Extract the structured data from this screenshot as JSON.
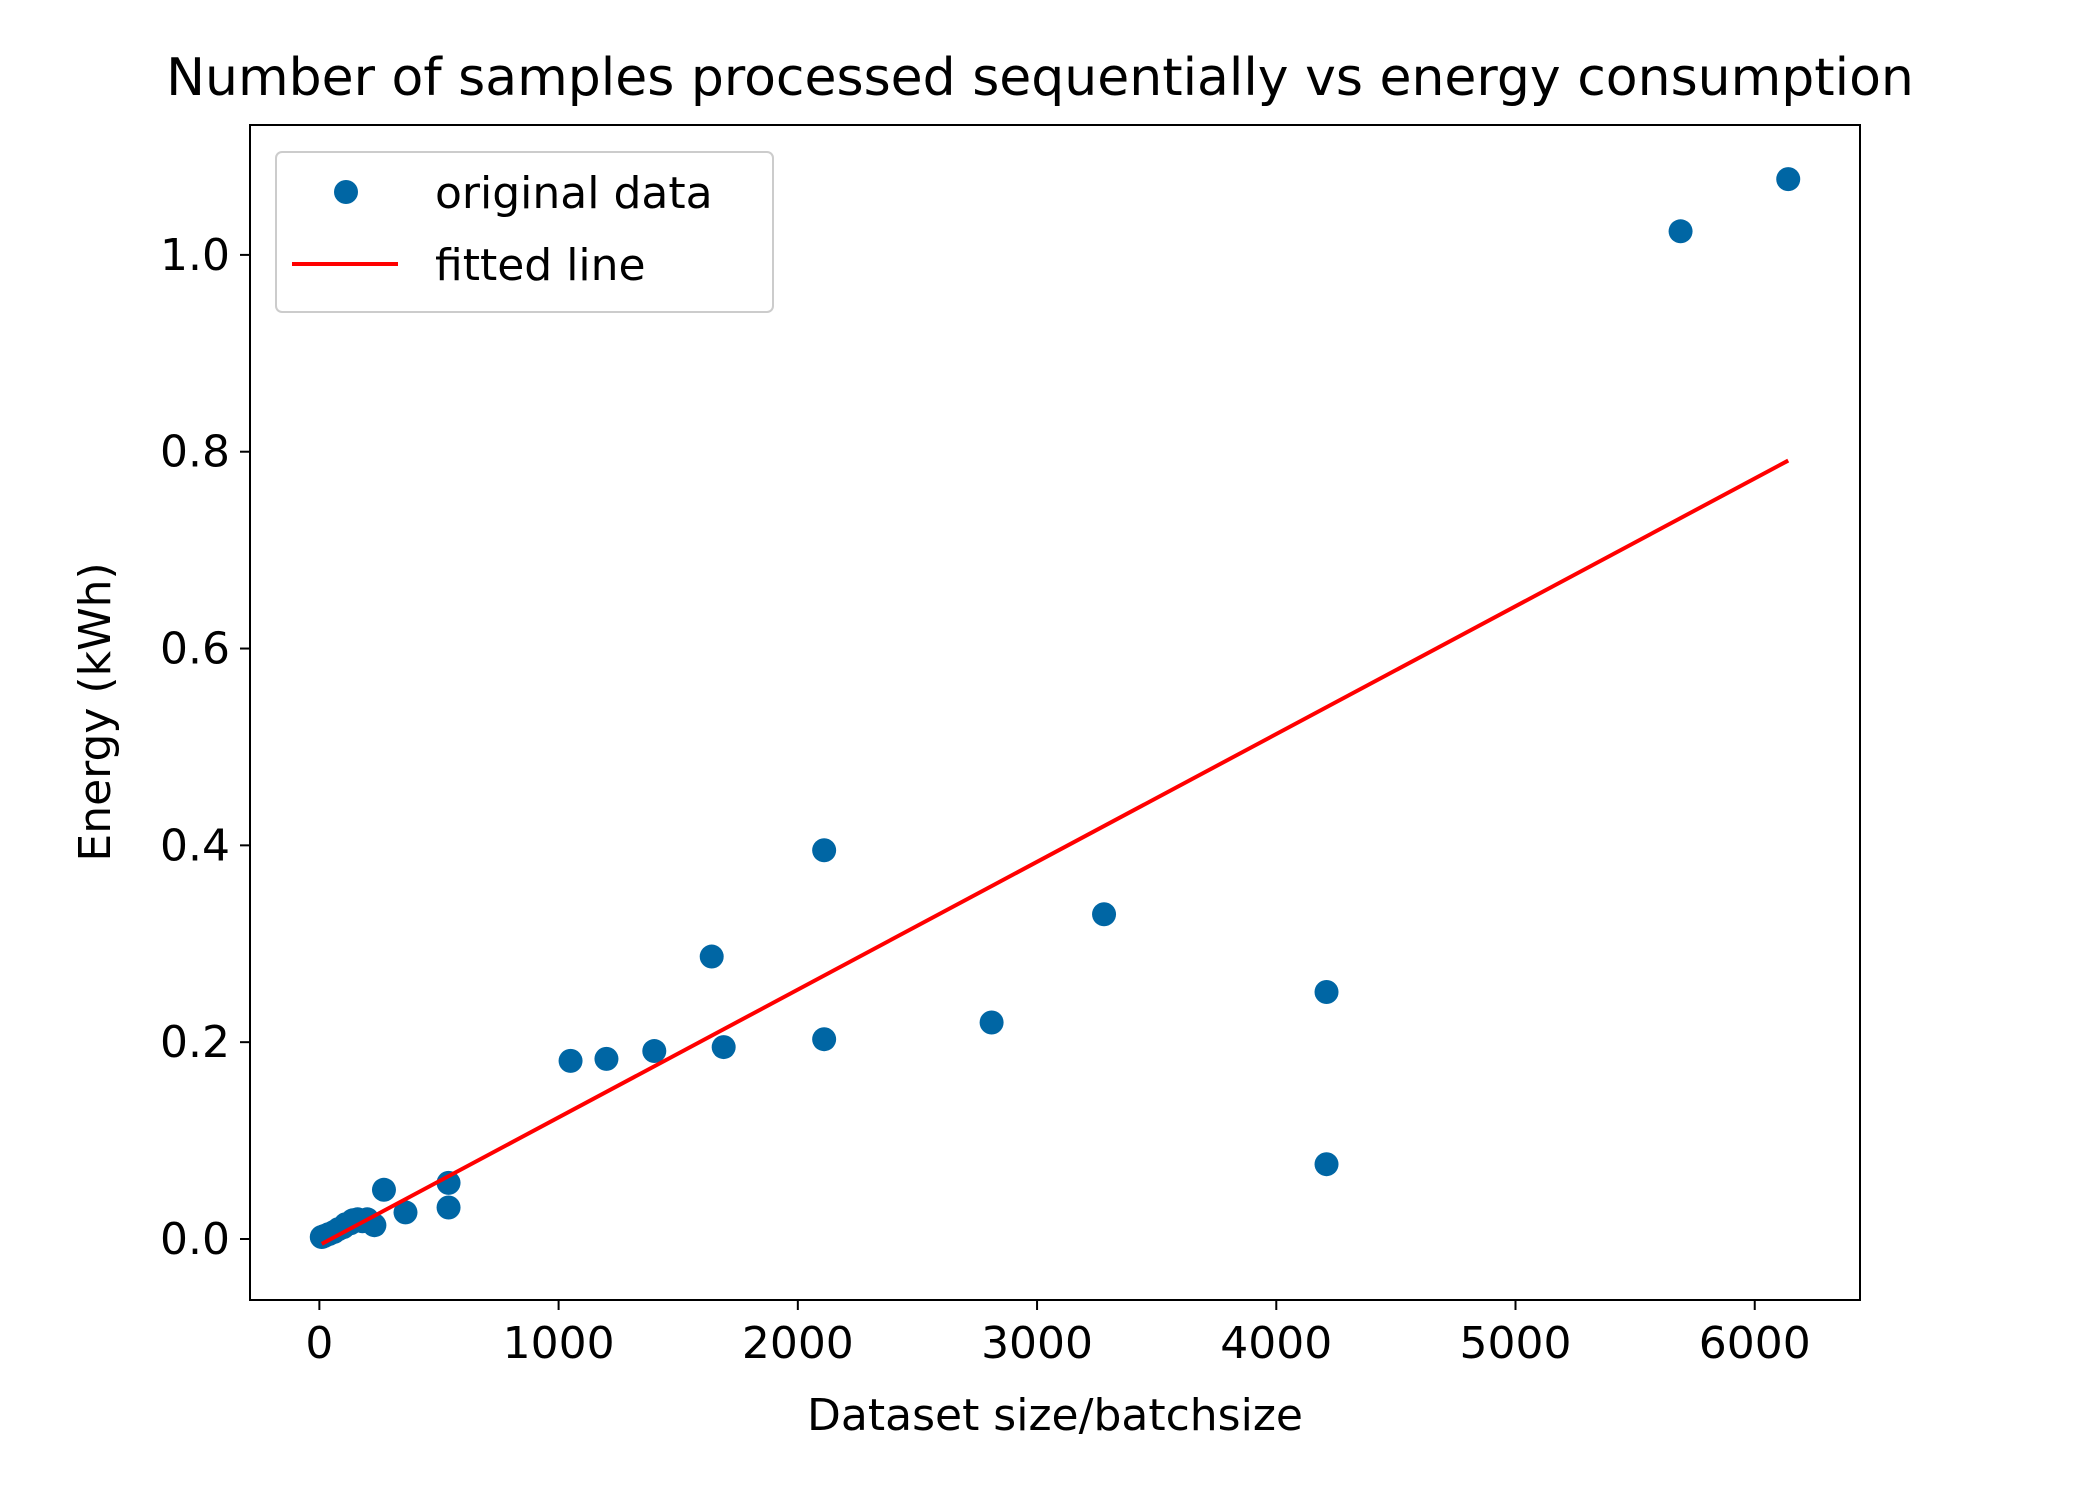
{
  "chart_data": {
    "type": "scatter",
    "title": "Number of samples processed sequentially vs energy consumption",
    "xlabel": "Dataset size/batchsize",
    "ylabel": "Energy (kWh)",
    "xlim": [
      -290,
      6440
    ],
    "ylim": [
      -0.062,
      1.132
    ],
    "x_ticks": [
      0,
      1000,
      2000,
      3000,
      4000,
      5000,
      6000
    ],
    "x_tick_labels": [
      "0",
      "1000",
      "2000",
      "3000",
      "4000",
      "5000",
      "6000"
    ],
    "y_ticks": [
      0.0,
      0.2,
      0.4,
      0.6,
      0.8,
      1.0
    ],
    "y_tick_labels": [
      "0.0",
      "0.2",
      "0.4",
      "0.6",
      "0.8",
      "1.0"
    ],
    "grid": false,
    "legend_position": "top-left",
    "legend": [
      "original data",
      "fitted line"
    ],
    "series": [
      {
        "name": "original data",
        "kind": "scatter",
        "color": "#0066a4",
        "points": [
          [
            10,
            0.002
          ],
          [
            20,
            0.003
          ],
          [
            40,
            0.005
          ],
          [
            60,
            0.007
          ],
          [
            80,
            0.01
          ],
          [
            100,
            0.012
          ],
          [
            110,
            0.015
          ],
          [
            130,
            0.016
          ],
          [
            140,
            0.019
          ],
          [
            160,
            0.02
          ],
          [
            180,
            0.018
          ],
          [
            200,
            0.02
          ],
          [
            230,
            0.014
          ],
          [
            270,
            0.05
          ],
          [
            360,
            0.027
          ],
          [
            540,
            0.057
          ],
          [
            540,
            0.032
          ],
          [
            1050,
            0.181
          ],
          [
            1200,
            0.183
          ],
          [
            1400,
            0.191
          ],
          [
            1640,
            0.287
          ],
          [
            1690,
            0.195
          ],
          [
            2110,
            0.395
          ],
          [
            2110,
            0.203
          ],
          [
            2810,
            0.22
          ],
          [
            3280,
            0.33
          ],
          [
            4210,
            0.251
          ],
          [
            4210,
            0.076
          ],
          [
            5690,
            1.024
          ],
          [
            6140,
            1.077
          ]
        ]
      },
      {
        "name": "fitted line",
        "kind": "line",
        "color": "#ff0000",
        "points": [
          [
            10,
            -0.005
          ],
          [
            6140,
            0.791
          ]
        ]
      }
    ]
  }
}
